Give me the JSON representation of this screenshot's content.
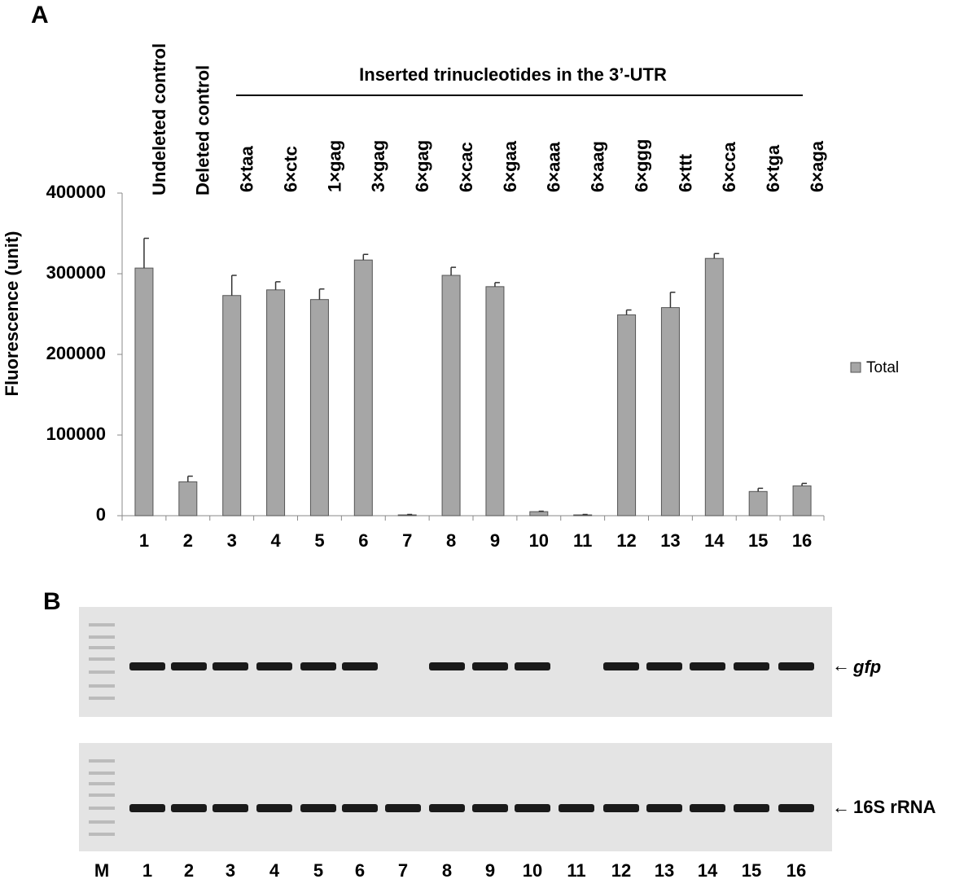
{
  "chart_data": {
    "type": "bar",
    "panel_label": "A",
    "header": "Inserted trinucleotides in the 3’-UTR",
    "y_label": "Fluorescence (unit)",
    "categories": [
      "1",
      "2",
      "3",
      "4",
      "5",
      "6",
      "7",
      "8",
      "9",
      "10",
      "11",
      "12",
      "13",
      "14",
      "15",
      "16"
    ],
    "top_labels": [
      "Undeleted control",
      "Deleted control",
      "6×taa",
      "6×ctc",
      "1×gag",
      "3×gag",
      "6×gag",
      "6×cac",
      "6×gaa",
      "6×aaa",
      "6×aag",
      "6×ggg",
      "6×ttt",
      "6×cca",
      "6×tga",
      "6×aga"
    ],
    "series": [
      {
        "name": "Total",
        "color": "#a6a6a6",
        "values": [
          307000,
          42000,
          273000,
          280000,
          268000,
          317000,
          1000,
          298000,
          284000,
          5000,
          1000,
          249000,
          258000,
          319000,
          30000,
          37000
        ],
        "errors": [
          37000,
          7000,
          25000,
          10000,
          13000,
          7000,
          500,
          10000,
          5000,
          500,
          500,
          6000,
          19000,
          6000,
          4000,
          3000
        ]
      }
    ],
    "ylim": [
      0,
      400000
    ],
    "yticks": [
      0,
      100000,
      200000,
      300000,
      400000
    ],
    "grid": false,
    "legend": "right"
  },
  "panel_b": {
    "panel_label": "B",
    "lanes": [
      "M",
      "1",
      "2",
      "3",
      "4",
      "5",
      "6",
      "7",
      "8",
      "9",
      "10",
      "11",
      "12",
      "13",
      "14",
      "15",
      "16"
    ],
    "gels": [
      "gfp",
      "16S rRNA"
    ]
  }
}
